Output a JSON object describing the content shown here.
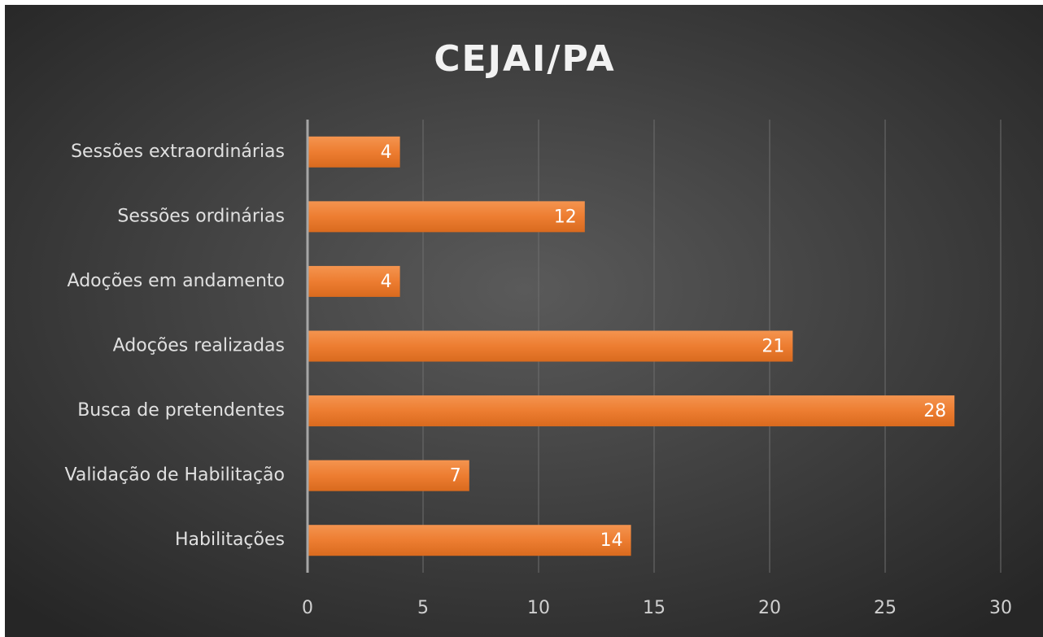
{
  "chart_data": {
    "type": "bar",
    "orientation": "horizontal",
    "title": "CEJAI/PA",
    "categories": [
      "Sessões extraordinárias",
      "Sessões ordinárias",
      "Adoções em andamento",
      "Adoções realizadas",
      "Busca de pretendentes",
      "Validação de Habilitação",
      "Habilitações"
    ],
    "values": [
      4,
      12,
      4,
      21,
      28,
      7,
      14
    ],
    "color": "#ed7d31",
    "xlim": [
      0,
      30
    ],
    "xticks": [
      0,
      5,
      10,
      15,
      20,
      25,
      30
    ],
    "grid": true
  }
}
